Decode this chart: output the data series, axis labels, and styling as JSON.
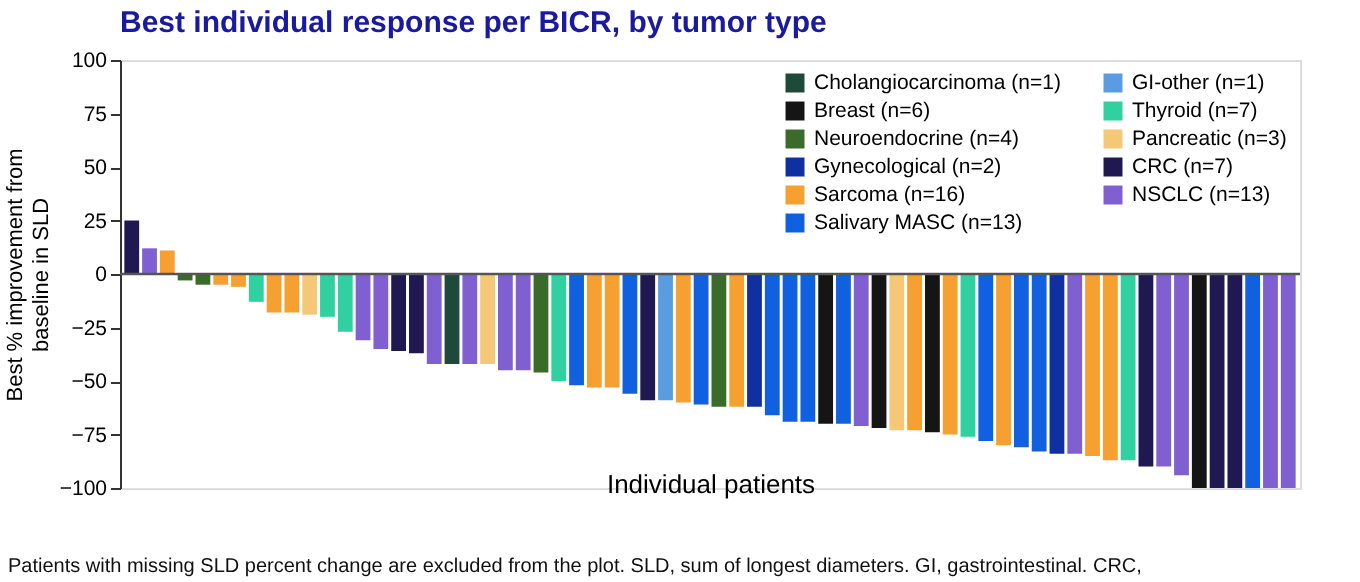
{
  "chart_data": {
    "type": "bar",
    "title": "Best individual response per BICR, by tumor type",
    "xlabel": "Individual patients",
    "ylabel": "Best % improvement from baseline in SLD",
    "annotations": [
      "Patients with missing SLD percent change are excluded from the plot. SLD, sum of longest diameters. GI, gastrointestinal. CRC,"
    ],
    "categories": [
      null,
      null,
      null,
      null,
      null,
      null,
      null,
      null,
      null,
      null,
      null,
      null,
      null,
      null,
      null,
      null,
      null,
      null,
      null,
      null,
      null,
      null,
      null,
      null,
      null,
      null,
      null,
      null,
      null,
      null,
      null,
      null,
      null,
      null,
      null,
      null,
      null,
      null,
      null,
      null,
      null,
      null,
      null,
      null,
      null,
      null,
      null,
      null,
      null,
      null,
      null,
      null,
      null,
      null,
      null,
      null,
      null,
      null,
      null,
      null,
      null,
      null,
      null,
      null,
      null,
      null
    ],
    "series": [
      {
        "name": "Cholangiocarcinoma (n=1)",
        "color": "#1f4a3a",
        "values": [
          null,
          null,
          null,
          null,
          null,
          null,
          null,
          null,
          null,
          null,
          null,
          null,
          null,
          null,
          null,
          null,
          null,
          null,
          -42,
          null,
          null,
          null,
          null,
          null,
          null,
          null,
          null,
          null,
          null,
          null,
          null,
          null,
          null,
          null,
          null,
          null,
          null,
          null,
          null,
          null,
          null,
          null,
          null,
          null,
          null,
          null,
          null,
          null,
          null,
          null,
          null,
          null,
          null,
          null,
          null,
          null,
          null,
          null,
          null,
          null,
          null,
          null,
          null,
          null,
          null,
          null
        ]
      },
      {
        "name": "Breast (n=6)",
        "color": "#151515",
        "values": [
          null,
          null,
          null,
          null,
          null,
          null,
          null,
          null,
          null,
          null,
          null,
          null,
          null,
          null,
          null,
          null,
          null,
          null,
          null,
          null,
          null,
          null,
          null,
          null,
          null,
          null,
          null,
          null,
          null,
          null,
          null,
          null,
          null,
          null,
          null,
          null,
          null,
          null,
          null,
          -70,
          null,
          null,
          -72,
          null,
          null,
          -74,
          null,
          null,
          null,
          null,
          null,
          null,
          null,
          null,
          null,
          null,
          null,
          null,
          null,
          null,
          -100,
          null,
          null,
          null,
          null,
          null
        ]
      },
      {
        "name": "Neuroendocrine (n=4)",
        "color": "#3a6b2a",
        "values": [
          null,
          null,
          null,
          -3,
          -5,
          null,
          null,
          null,
          null,
          null,
          null,
          null,
          null,
          null,
          null,
          null,
          null,
          null,
          null,
          null,
          null,
          null,
          null,
          -46,
          null,
          null,
          null,
          null,
          null,
          null,
          null,
          null,
          null,
          -62,
          null,
          null,
          null,
          null,
          null,
          null,
          null,
          null,
          null,
          null,
          null,
          null,
          null,
          null,
          null,
          null,
          null,
          null,
          null,
          null,
          null,
          null,
          null,
          null,
          null,
          null,
          null,
          null,
          null,
          null,
          null,
          null
        ]
      },
      {
        "name": "Gynecological (n=2)",
        "color": "#1030a0",
        "values": [
          null,
          null,
          null,
          null,
          null,
          null,
          null,
          null,
          null,
          null,
          null,
          null,
          null,
          null,
          null,
          null,
          null,
          null,
          null,
          null,
          null,
          null,
          null,
          null,
          null,
          null,
          null,
          null,
          null,
          null,
          null,
          null,
          null,
          null,
          null,
          -62,
          null,
          null,
          null,
          null,
          null,
          null,
          null,
          null,
          null,
          null,
          null,
          null,
          null,
          null,
          null,
          null,
          -84,
          null,
          null,
          null,
          null,
          null,
          null,
          null,
          null,
          null,
          null,
          null,
          null,
          null
        ]
      },
      {
        "name": "Sarcoma (n=16)",
        "color": "#f5a030",
        "values": [
          null,
          null,
          11,
          null,
          null,
          -5,
          -6,
          null,
          -18,
          -18,
          null,
          null,
          null,
          null,
          null,
          null,
          null,
          null,
          null,
          null,
          null,
          null,
          null,
          null,
          null,
          null,
          -53,
          -53,
          null,
          null,
          null,
          -60,
          null,
          null,
          -62,
          null,
          null,
          null,
          null,
          null,
          null,
          null,
          null,
          null,
          -73,
          null,
          -75,
          null,
          null,
          -80,
          null,
          null,
          null,
          null,
          -85,
          -87,
          null,
          null,
          null,
          null,
          null,
          null,
          null,
          null,
          null,
          null
        ]
      },
      {
        "name": "Salivary MASC (n=13)",
        "color": "#1060e0",
        "values": [
          null,
          null,
          null,
          null,
          null,
          null,
          null,
          null,
          null,
          null,
          null,
          null,
          null,
          null,
          null,
          null,
          null,
          null,
          null,
          null,
          null,
          null,
          null,
          null,
          null,
          -52,
          null,
          null,
          -56,
          null,
          null,
          null,
          -61,
          null,
          null,
          null,
          -66,
          -69,
          -69,
          null,
          -70,
          null,
          null,
          null,
          null,
          null,
          null,
          null,
          -78,
          null,
          -81,
          -83,
          null,
          null,
          null,
          null,
          null,
          null,
          null,
          null,
          null,
          null,
          null,
          -100,
          null,
          null
        ]
      },
      {
        "name": "GI-other (n=1)",
        "color": "#5b9be0",
        "values": [
          null,
          null,
          null,
          null,
          null,
          null,
          null,
          null,
          null,
          null,
          null,
          null,
          null,
          null,
          null,
          null,
          null,
          null,
          null,
          null,
          null,
          null,
          null,
          null,
          null,
          null,
          null,
          null,
          null,
          null,
          -59,
          null,
          null,
          null,
          null,
          null,
          null,
          null,
          null,
          null,
          null,
          null,
          null,
          null,
          null,
          null,
          null,
          null,
          null,
          null,
          null,
          null,
          null,
          null,
          null,
          null,
          null,
          null,
          null,
          null,
          null,
          null,
          null,
          null,
          null,
          null
        ]
      },
      {
        "name": "Thyroid (n=7)",
        "color": "#30d0a0",
        "values": [
          null,
          null,
          null,
          null,
          null,
          null,
          null,
          -13,
          null,
          null,
          null,
          -20,
          -27,
          null,
          null,
          null,
          null,
          null,
          null,
          null,
          null,
          null,
          null,
          null,
          -50,
          null,
          null,
          null,
          null,
          null,
          null,
          null,
          null,
          null,
          null,
          null,
          null,
          null,
          null,
          null,
          null,
          null,
          null,
          null,
          null,
          null,
          null,
          -76,
          null,
          null,
          null,
          null,
          null,
          null,
          null,
          null,
          -87,
          null,
          null,
          null,
          null,
          null,
          null,
          null,
          null,
          null
        ]
      },
      {
        "name": "Pancreatic (n=3)",
        "color": "#f5c878",
        "values": [
          null,
          null,
          null,
          null,
          null,
          null,
          null,
          null,
          null,
          null,
          -19,
          null,
          null,
          null,
          null,
          null,
          null,
          null,
          null,
          null,
          -42,
          null,
          null,
          null,
          null,
          null,
          null,
          null,
          null,
          null,
          null,
          null,
          null,
          null,
          null,
          null,
          null,
          null,
          null,
          null,
          null,
          null,
          null,
          -73,
          null,
          null,
          null,
          null,
          null,
          null,
          null,
          null,
          null,
          null,
          null,
          null,
          null,
          null,
          null,
          null,
          null,
          null,
          null,
          null,
          null,
          null
        ]
      },
      {
        "name": "CRC (n=7)",
        "color": "#201850",
        "values": [
          25,
          null,
          null,
          null,
          null,
          null,
          null,
          null,
          null,
          null,
          null,
          null,
          null,
          null,
          null,
          -36,
          -37,
          null,
          null,
          null,
          null,
          null,
          null,
          null,
          null,
          null,
          null,
          null,
          null,
          -59,
          null,
          null,
          null,
          null,
          null,
          null,
          null,
          null,
          null,
          null,
          null,
          null,
          null,
          null,
          null,
          null,
          null,
          null,
          null,
          null,
          null,
          null,
          null,
          null,
          null,
          null,
          null,
          -90,
          null,
          null,
          null,
          -100,
          -100,
          null,
          null,
          null
        ]
      },
      {
        "name": "NSCLC (n=13)",
        "color": "#8060d0",
        "values": [
          null,
          12,
          null,
          null,
          null,
          null,
          null,
          null,
          null,
          null,
          null,
          null,
          null,
          -31,
          -35,
          null,
          null,
          -42,
          null,
          -42,
          null,
          -45,
          -45,
          null,
          null,
          null,
          null,
          null,
          null,
          null,
          null,
          null,
          null,
          null,
          null,
          null,
          null,
          null,
          null,
          null,
          null,
          -71,
          null,
          null,
          null,
          null,
          null,
          null,
          null,
          null,
          null,
          null,
          null,
          -84,
          null,
          null,
          null,
          null,
          -90,
          -94,
          null,
          null,
          null,
          null,
          -100,
          -100
        ]
      }
    ],
    "ylim": [
      -100,
      100
    ],
    "yticks": [
      -100,
      -75,
      -50,
      -25,
      0,
      25,
      50,
      75,
      100
    ],
    "ref_lines": [
      {
        "axis": "y",
        "value": 0,
        "color": "#555555"
      }
    ],
    "tick_labels": "y",
    "grid": false,
    "legend": "top right"
  }
}
